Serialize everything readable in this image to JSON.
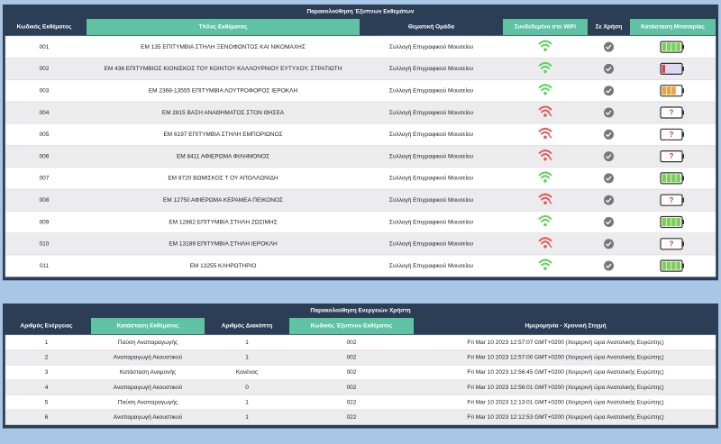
{
  "top_table": {
    "title": "Παρακολούθηση Έξυπνων Εκθεμάτων",
    "columns": [
      "Κωδικός Εκθέματος",
      "Τίτλος Εκθέματος",
      "Θεματική Ομάδα",
      "Συνδεδεμένο στο WiFi",
      "Σε Χρήση",
      "Κατάσταση Μπαταρίας"
    ],
    "battery_unknown_label": "?",
    "rows": [
      [
        "001",
        "ΕΜ 135 ΕΠΙΤΥΜΒΙΑ ΣΤΗΛΗ ΞΕΝΟΦΩΝΤΟΣ ΚΑΙ ΝΙΚΟΜΑΧΗΣ",
        "Συλλογή Επιγραφικού Μουσείου"
      ],
      [
        "002",
        "ΕΜ 436 ΕΠΙΤΥΜΒΙΟΣ ΚΙΟΝΙΣΚΟΣ ΤΟΥ ΚΟΙΝΤΟΥ ΚΑΛΛΟΥΡΝΙΟΥ ΕΥΤΥΧΟΥ, ΣΤΡΑΤΙΩΤΗ",
        "Συλλογή Επιγραφικού Μουσείου"
      ],
      [
        "003",
        "ΕΜ 2368-13555 ΕΠΙΤΥΜΒΙΑ ΛΟΥΤΡΟΦΟΡΟΣ ΙΕΡΟΚΛΗ",
        "Συλλογή Επιγραφικού Μουσείου"
      ],
      [
        "004",
        "ΕΜ 2815 ΒΑΣΗ ΑΝΑΘΗΜΑΤΟΣ ΣΤΟΝ ΘΗΣΕΑ",
        "Συλλογή Επιγραφικού Μουσείου"
      ],
      [
        "005",
        "ΕΜ 6197 ΕΠΙΤΥΜΒΙΑ ΣΤΗΛΗ ΕΜΠΟΡΙΩΝΟΣ",
        "Συλλογή Επιγραφικού Μουσείου"
      ],
      [
        "006",
        "ΕΜ 8411 ΑΦΙΕΡΩΜΑ ΦΙΛΗΜΟΝΟΣ",
        "Συλλογή Επιγραφικού Μουσείου"
      ],
      [
        "007",
        "ΕΜ 8720 ΒΩΜΙΣΚΟΣ Τ ΟΥ ΑΠΟΛΛΩΝΙΔΗ",
        "Συλλογή Επιγραφικού Μουσείου"
      ],
      [
        "008",
        "ΕΜ 12750 ΑΦΙΕΡΩΜΑ ΚΕΡΑΜΕΑ ΠΕΙΚΟΝΟΣ",
        "Συλλογή Επιγραφικού Μουσείου"
      ],
      [
        "009",
        "ΕΜ 12862 ΕΠΙΤΥΜΒΙΑ ΣΤΗΛΗ ΖΩΣΙΜΗΣ",
        "Συλλογή Επιγραφικού Μουσείου"
      ],
      [
        "010",
        "ΕΜ 13189 ΕΠΙΤΥΜΒΙΑ ΣΤΗΛΗ ΙΕΡΟΚΛΗ",
        "Συλλογή Επιγραφικού Μουσείου"
      ],
      [
        "011",
        "ΕΜ 13255 ΚΛΗΡΩΤΗΡΙΟ",
        "Συλλογή Επιγραφικού Μουσείου"
      ]
    ]
  },
  "bottom_table": {
    "title": "Παρακολούθηση Ενεργειών Χρήστη",
    "columns": [
      "Αριθμός Ενέργειας",
      "Κατάσταση Εκθέματος",
      "Αριθμός Διακόπτη",
      "Κωδικός Έξυπνου Εκθέματος",
      "Ημερομηνία - Χρονική Στιγμή"
    ],
    "rows": [
      [
        "1",
        "Παύση Αναπαραγωγής",
        "1",
        "002",
        "Fri Mar 10 2023 12:57:07 GMT+0200 (Χειμερινή ώρα Ανατολικής Ευρώπης)"
      ],
      [
        "2",
        "Αναπαραγωγή Ακουστικού",
        "1",
        "002",
        "Fri Mar 10 2023 12:57:00 GMT+0200 (Χειμερινή ώρα Ανατολικής Ευρώπης)"
      ],
      [
        "3",
        "Κατάσταση Αναμονής",
        "Κανένας",
        "002",
        "Fri Mar 10 2023 12:56:45 GMT+0200 (Χειμερινή ώρα Ανατολικής Ευρώπης)"
      ],
      [
        "4",
        "Αναπαραγωγή Ακουστικού",
        "0",
        "002",
        "Fri Mar 10 2023 12:56:01 GMT+0200 (Χειμερινή ώρα Ανατολικής Ευρώπης)"
      ],
      [
        "5",
        "Παύση Αναπαραγωγής",
        "1",
        "022",
        "Fri Mar 10 2023 12:13:01 GMT+0200 (Χειμερινή ώρα Ανατολικής Ευρώπης)"
      ],
      [
        "6",
        "Αναπαραγωγή Ακουστικού",
        "1",
        "022",
        "Fri Mar 10 2023 12:12:53 GMT+0200 (Χειμερινή ώρα Ανατολικής Ευρώπης)"
      ]
    ]
  }
}
